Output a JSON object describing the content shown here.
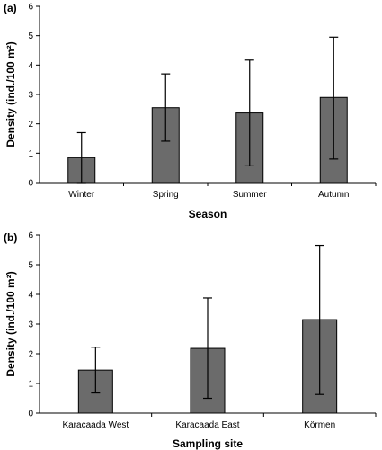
{
  "chart_data": [
    {
      "type": "bar",
      "panel_label": "(a)",
      "categories": [
        "Winter",
        "Spring",
        "Summer",
        "Autumn"
      ],
      "values": [
        0.85,
        2.55,
        2.37,
        2.9
      ],
      "error_upper": [
        1.7,
        3.7,
        4.17,
        4.95
      ],
      "error_lower": [
        0.0,
        1.41,
        0.57,
        0.8
      ],
      "xlabel": "Season",
      "ylabel": "Density (ind./100 m²)",
      "ylim": [
        0,
        6
      ],
      "yticks": [
        "0",
        "1",
        "2",
        "3",
        "4",
        "5",
        "6"
      ],
      "bar_color": "#6b6b6b",
      "grid": false
    },
    {
      "type": "bar",
      "panel_label": "(b)",
      "categories": [
        "Karacaada West",
        "Karacaada East",
        "Körmen"
      ],
      "values": [
        1.45,
        2.18,
        3.15
      ],
      "error_upper": [
        2.22,
        3.88,
        5.65
      ],
      "error_lower": [
        0.68,
        0.5,
        0.63
      ],
      "xlabel": "Sampling site",
      "ylabel": "Density (ind./100 m²)",
      "ylim": [
        0,
        6
      ],
      "yticks": [
        "0",
        "1",
        "2",
        "3",
        "4",
        "5",
        "6"
      ],
      "bar_color": "#6b6b6b",
      "grid": false
    }
  ]
}
